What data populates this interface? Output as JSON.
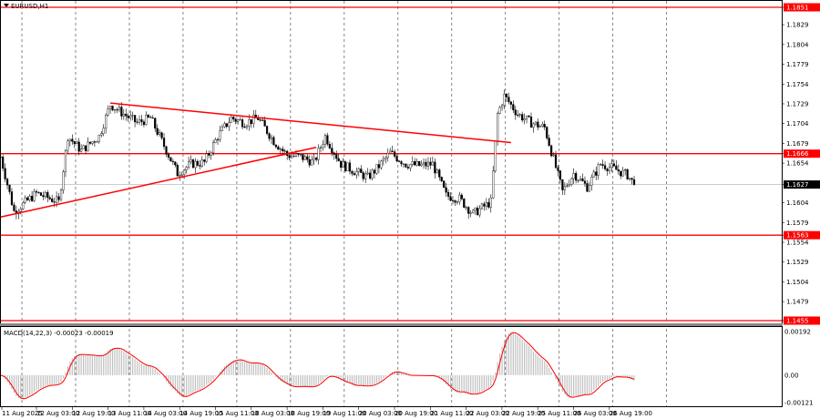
{
  "window": {
    "title": "EURUSD,H1"
  },
  "chart_data": [
    {
      "type": "candlestick",
      "symbol": "EURUSD",
      "timeframe": "H1",
      "ylim": [
        1.1455,
        1.1851
      ],
      "y_ticks": [
        "1.1851",
        "1.1829",
        "1.1804",
        "1.1779",
        "1.1754",
        "1.1729",
        "1.1704",
        "1.1679",
        "1.1666",
        "1.1654",
        "1.1627",
        "1.1604",
        "1.1579",
        "1.1563",
        "1.1554",
        "1.1529",
        "1.1504",
        "1.1479",
        "1.1455"
      ],
      "x_ticks": [
        "11 Aug 2025",
        "12 Aug 03:00",
        "12 Aug 19:00",
        "13 Aug 11:00",
        "14 Aug 03:00",
        "14 Aug 19:00",
        "15 Aug 11:00",
        "18 Aug 03:00",
        "18 Aug 19:00",
        "19 Aug 11:00",
        "20 Aug 03:00",
        "20 Aug 19:00",
        "21 Aug 11:00",
        "22 Aug 03:00",
        "22 Aug 19:00",
        "25 Aug 11:00",
        "26 Aug 03:00",
        "26 Aug 19:00"
      ],
      "grid": "vertical dashed (daily)",
      "current_price": 1.1627,
      "price_path": [
        [
          "2025-08-11 11:00",
          1.1662
        ],
        [
          "2025-08-11 17:00",
          1.1593
        ],
        [
          "2025-08-12 03:00",
          1.1616
        ],
        [
          "2025-08-12 13:00",
          1.1605
        ],
        [
          "2025-08-12 17:00",
          1.1688
        ],
        [
          "2025-08-12 23:00",
          1.167
        ],
        [
          "2025-08-13 07:00",
          1.1688
        ],
        [
          "2025-08-13 12:00",
          1.1728
        ],
        [
          "2025-08-13 18:00",
          1.1716
        ],
        [
          "2025-08-14 00:00",
          1.1705
        ],
        [
          "2025-08-14 06:00",
          1.1711
        ],
        [
          "2025-08-14 12:00",
          1.1676
        ],
        [
          "2025-08-14 18:00",
          1.1641
        ],
        [
          "2025-08-15 00:00",
          1.1653
        ],
        [
          "2025-08-15 06:00",
          1.1655
        ],
        [
          "2025-08-15 12:00",
          1.1688
        ],
        [
          "2025-08-15 18:00",
          1.1711
        ],
        [
          "2025-08-18 00:00",
          1.1705
        ],
        [
          "2025-08-18 06:00",
          1.1711
        ],
        [
          "2025-08-18 13:00",
          1.1682
        ],
        [
          "2025-08-18 19:00",
          1.1664
        ],
        [
          "2025-08-19 01:00",
          1.1662
        ],
        [
          "2025-08-19 07:00",
          1.1655
        ],
        [
          "2025-08-19 12:00",
          1.1688
        ],
        [
          "2025-08-19 19:00",
          1.1653
        ],
        [
          "2025-08-20 01:00",
          1.1644
        ],
        [
          "2025-08-20 07:00",
          1.1636
        ],
        [
          "2025-08-20 11:00",
          1.1647
        ],
        [
          "2025-08-20 17:00",
          1.1667
        ],
        [
          "2025-08-21 00:00",
          1.1653
        ],
        [
          "2025-08-21 06:00",
          1.1651
        ],
        [
          "2025-08-21 12:00",
          1.1653
        ],
        [
          "2025-08-21 18:00",
          1.1613
        ],
        [
          "2025-08-22 00:00",
          1.1609
        ],
        [
          "2025-08-22 06:00",
          1.159
        ],
        [
          "2025-08-22 14:00",
          1.1605
        ],
        [
          "2025-08-22 17:00",
          1.1716
        ],
        [
          "2025-08-22 20:00",
          1.1739
        ],
        [
          "2025-08-25 02:00",
          1.1716
        ],
        [
          "2025-08-25 08:00",
          1.1705
        ],
        [
          "2025-08-25 14:00",
          1.1699
        ],
        [
          "2025-08-25 18:00",
          1.1659
        ],
        [
          "2025-08-25 22:00",
          1.1618
        ],
        [
          "2025-08-26 03:00",
          1.1641
        ],
        [
          "2025-08-26 09:00",
          1.1624
        ],
        [
          "2025-08-26 15:00",
          1.1653
        ],
        [
          "2025-08-26 21:00",
          1.1647
        ],
        [
          "2025-08-27 03:00",
          1.1639
        ],
        [
          "2025-08-27 06:00",
          1.1627
        ]
      ],
      "horizontal_levels": [
        {
          "price": 1.1851,
          "color": "#ff0000"
        },
        {
          "price": 1.1666,
          "color": "#ff0000"
        },
        {
          "price": 1.1563,
          "color": "#ff0000"
        },
        {
          "price": 1.1455,
          "color": "#ff0000"
        }
      ],
      "trendlines": [
        {
          "from": [
            "2025-08-13 12:00",
            1.173
          ],
          "to": [
            "2025-08-22 23:00",
            1.168
          ],
          "color": "#ff0000"
        },
        {
          "from": [
            "2025-08-11 11:00",
            1.1586
          ],
          "to": [
            "2025-08-19 08:00",
            1.1674
          ],
          "color": "#ff0000"
        }
      ]
    },
    {
      "type": "bar+line",
      "indicator": "MACD(14,22,3)",
      "label": "MACD(14,22,3) -0.00023 -0.00019",
      "ylim": [
        -0.00121,
        0.00192
      ],
      "y_ticks": [
        "0.00192",
        "0.00",
        "-0.00121"
      ],
      "fast": 14,
      "slow": 22,
      "signal": 3,
      "histogram_color": "#c0c0c0",
      "signal_color": "#ff0000"
    }
  ]
}
